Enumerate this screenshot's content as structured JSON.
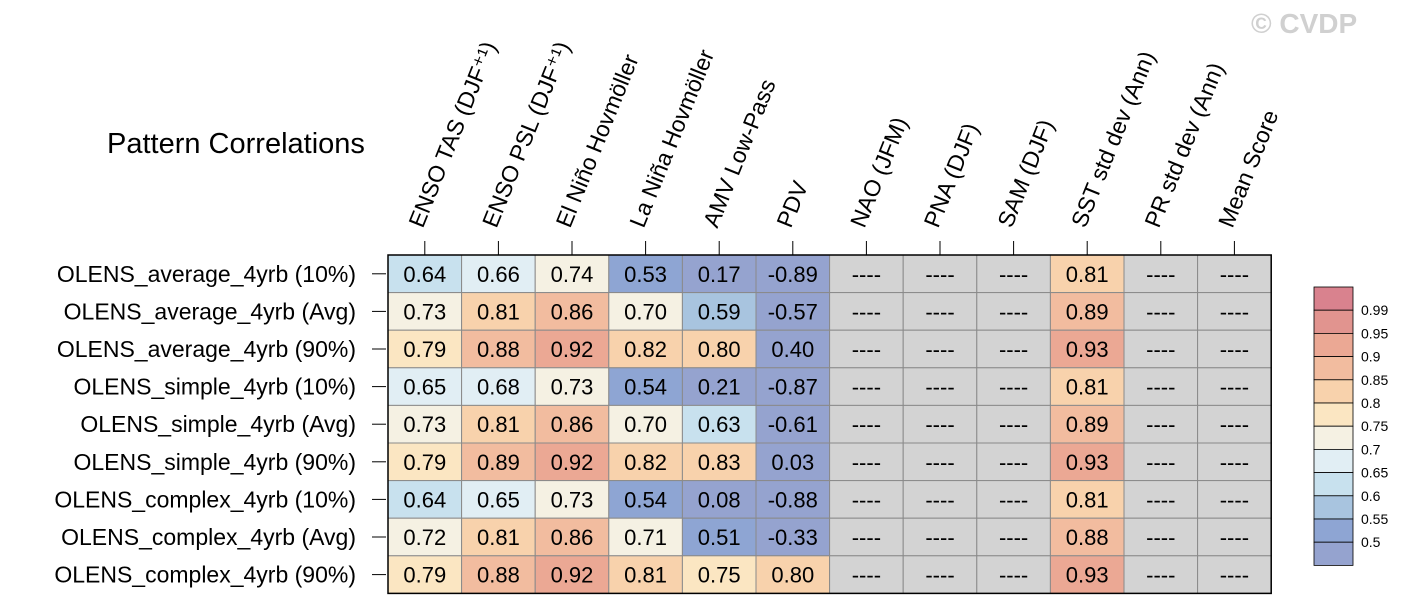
{
  "watermark": "© CVDP",
  "chart_data": {
    "type": "heatmap",
    "title": "Pattern Correlations",
    "columns": [
      "ENSO TAS (DJF⁺¹)",
      "ENSO PSL (DJF⁺¹)",
      "El Niño Hovmöller",
      "La Niña Hovmöller",
      "AMV Low-Pass",
      "PDV",
      "NAO (JFM)",
      "PNA (DJF)",
      "SAM (DJF)",
      "SST std dev (Ann)",
      "PR std dev (Ann)",
      "Mean Score"
    ],
    "rows": [
      "OLENS_average_4yrb (10%)",
      "OLENS_average_4yrb (Avg)",
      "OLENS_average_4yrb (90%)",
      "OLENS_simple_4yrb (10%)",
      "OLENS_simple_4yrb (Avg)",
      "OLENS_simple_4yrb (90%)",
      "OLENS_complex_4yrb (10%)",
      "OLENS_complex_4yrb (Avg)",
      "OLENS_complex_4yrb (90%)"
    ],
    "values": [
      [
        "0.64",
        "0.66",
        "0.74",
        "0.53",
        "0.17",
        "-0.89",
        "----",
        "----",
        "----",
        "0.81",
        "----",
        "----"
      ],
      [
        "0.73",
        "0.81",
        "0.86",
        "0.70",
        "0.59",
        "-0.57",
        "----",
        "----",
        "----",
        "0.89",
        "----",
        "----"
      ],
      [
        "0.79",
        "0.88",
        "0.92",
        "0.82",
        "0.80",
        "0.40",
        "----",
        "----",
        "----",
        "0.93",
        "----",
        "----"
      ],
      [
        "0.65",
        "0.68",
        "0.73",
        "0.54",
        "0.21",
        "-0.87",
        "----",
        "----",
        "----",
        "0.81",
        "----",
        "----"
      ],
      [
        "0.73",
        "0.81",
        "0.86",
        "0.70",
        "0.63",
        "-0.61",
        "----",
        "----",
        "----",
        "0.89",
        "----",
        "----"
      ],
      [
        "0.79",
        "0.89",
        "0.92",
        "0.82",
        "0.83",
        "0.03",
        "----",
        "----",
        "----",
        "0.93",
        "----",
        "----"
      ],
      [
        "0.64",
        "0.65",
        "0.73",
        "0.54",
        "0.08",
        "-0.88",
        "----",
        "----",
        "----",
        "0.81",
        "----",
        "----"
      ],
      [
        "0.72",
        "0.81",
        "0.86",
        "0.71",
        "0.51",
        "-0.33",
        "----",
        "----",
        "----",
        "0.88",
        "----",
        "----"
      ],
      [
        "0.79",
        "0.88",
        "0.92",
        "0.81",
        "0.75",
        "0.80",
        "----",
        "----",
        "----",
        "0.93",
        "----",
        "----"
      ]
    ],
    "missing_value_text": "----",
    "missing_color": "#d3d3d3",
    "colorbar": {
      "levels": [
        "0.99",
        "0.95",
        "0.9",
        "0.85",
        "0.8",
        "0.75",
        "0.7",
        "0.65",
        "0.6",
        "0.55",
        "0.5"
      ],
      "colors": [
        "#d9828e",
        "#e1948f",
        "#eba894",
        "#f2bc9f",
        "#f8d2ac",
        "#fbe6c2",
        "#f5f1e3",
        "#e1eef4",
        "#c8e1ee",
        "#a8c4df",
        "#8ea5d3",
        "#95a3cf"
      ]
    },
    "grid_color": "#8a8a8a"
  }
}
